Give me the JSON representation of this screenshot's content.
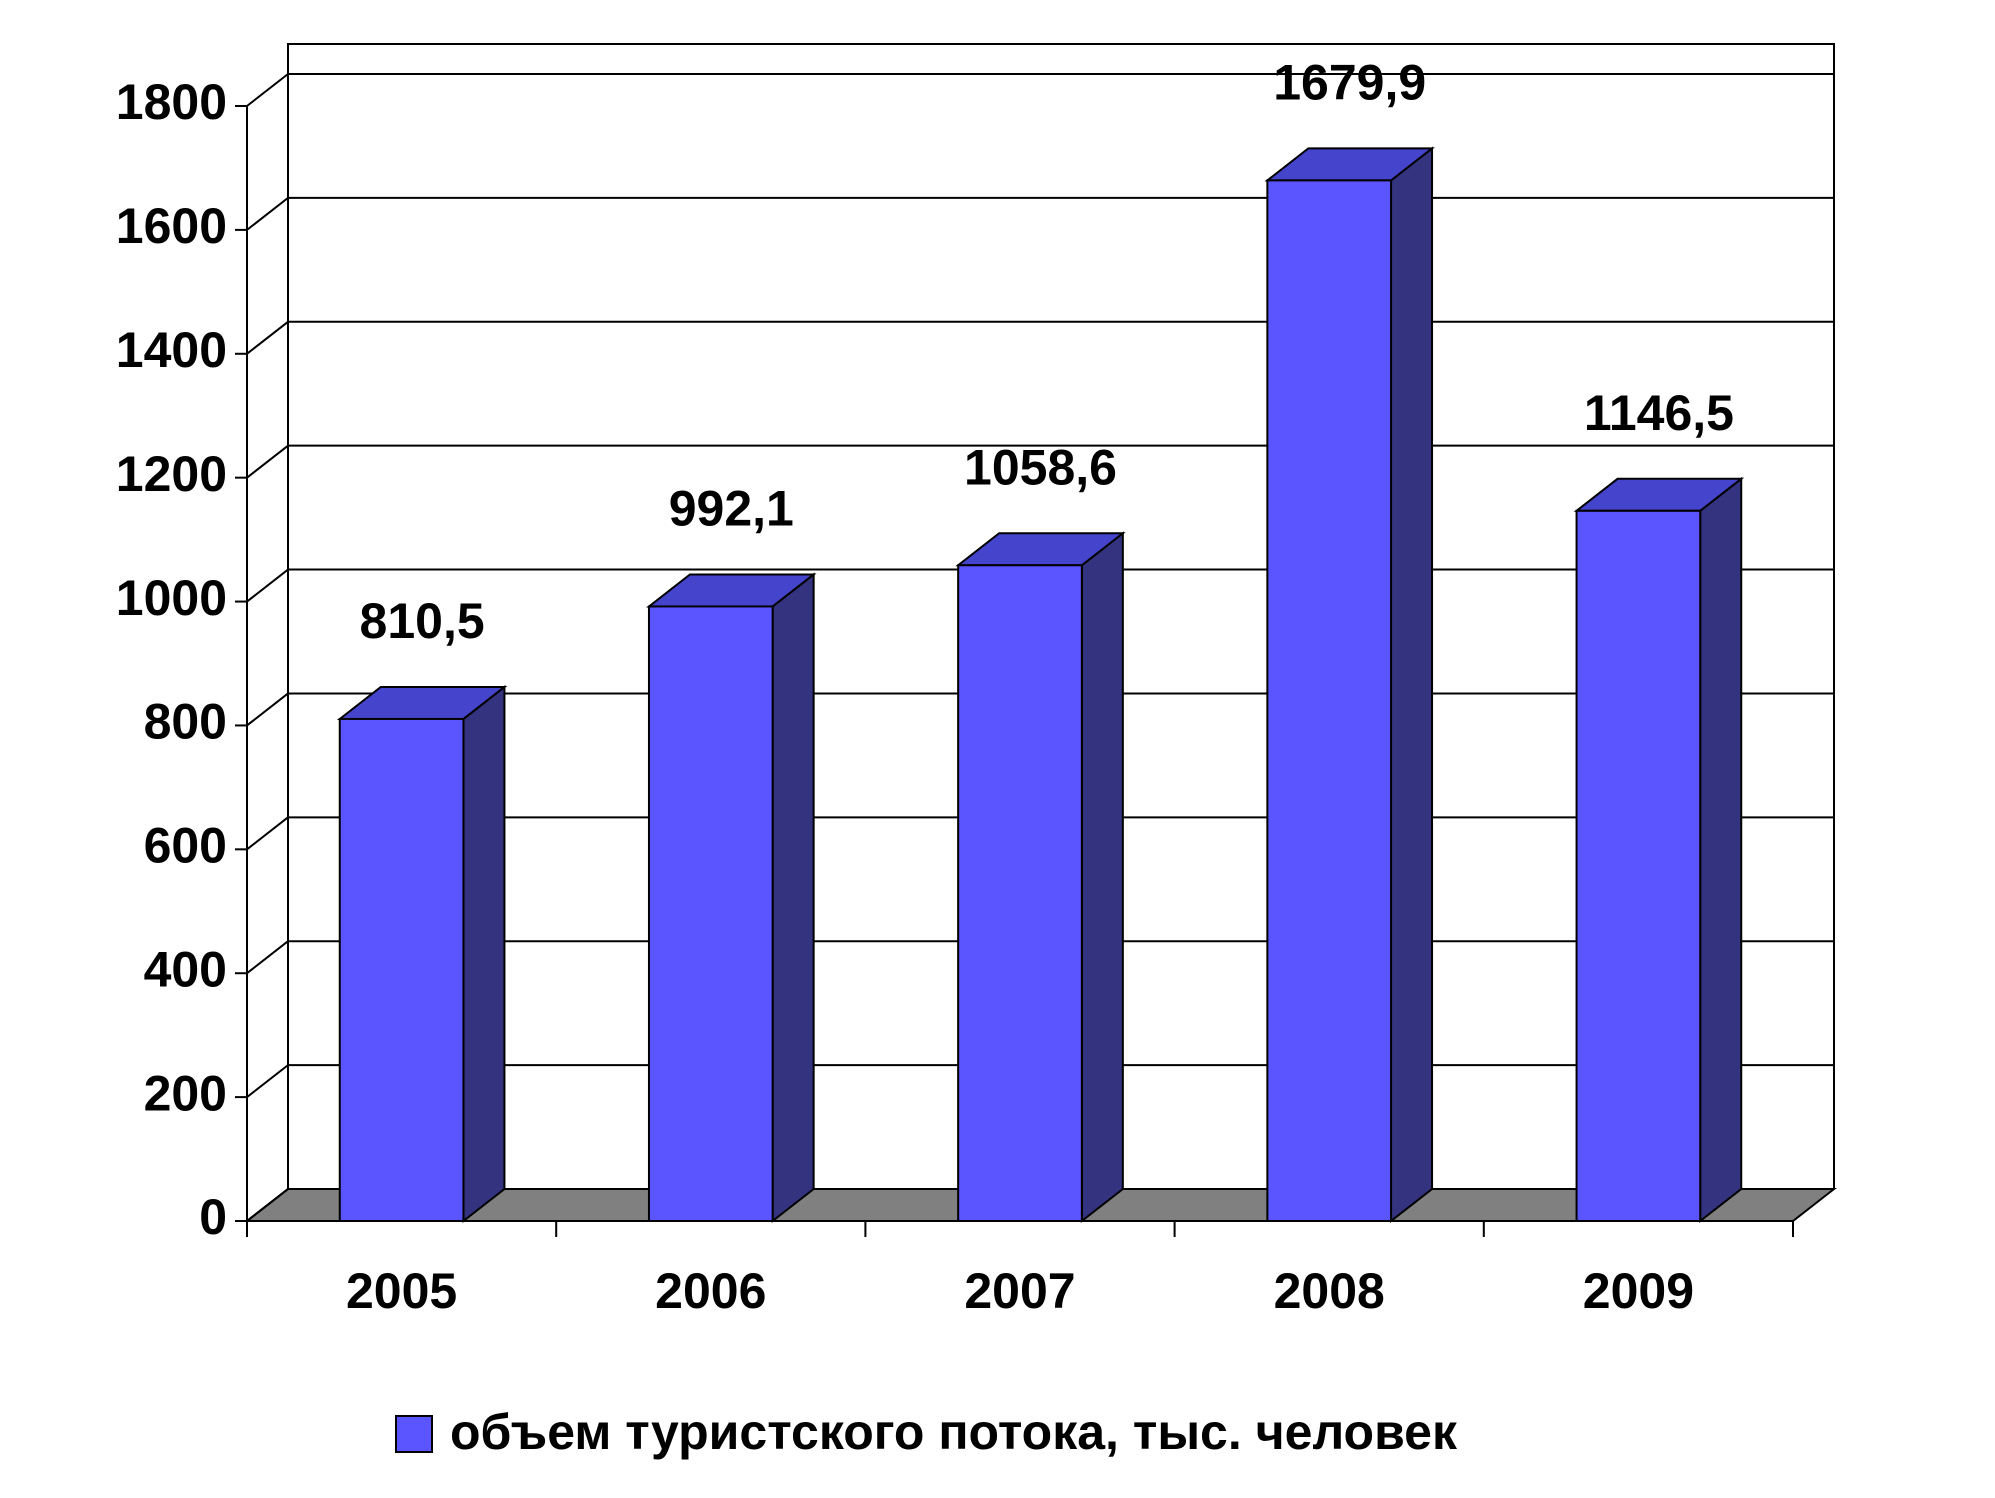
{
  "chart_data": {
    "type": "bar3d",
    "categories": [
      "2005",
      "2006",
      "2007",
      "2008",
      "2009"
    ],
    "series": [
      {
        "name": "объем туристского потока, тыс. человек",
        "color": "#5a55ff",
        "values": [
          810.5,
          992.1,
          1058.6,
          1679.9,
          1146.5
        ],
        "value_labels": [
          "810,5",
          "992,1",
          "1058,6",
          "1679,9",
          "1146,5"
        ]
      }
    ],
    "ylim": [
      0,
      1800
    ],
    "yticks": [
      0,
      200,
      400,
      600,
      800,
      1000,
      1200,
      1400,
      1600,
      1800
    ],
    "grid": true,
    "legend": "bottom"
  }
}
